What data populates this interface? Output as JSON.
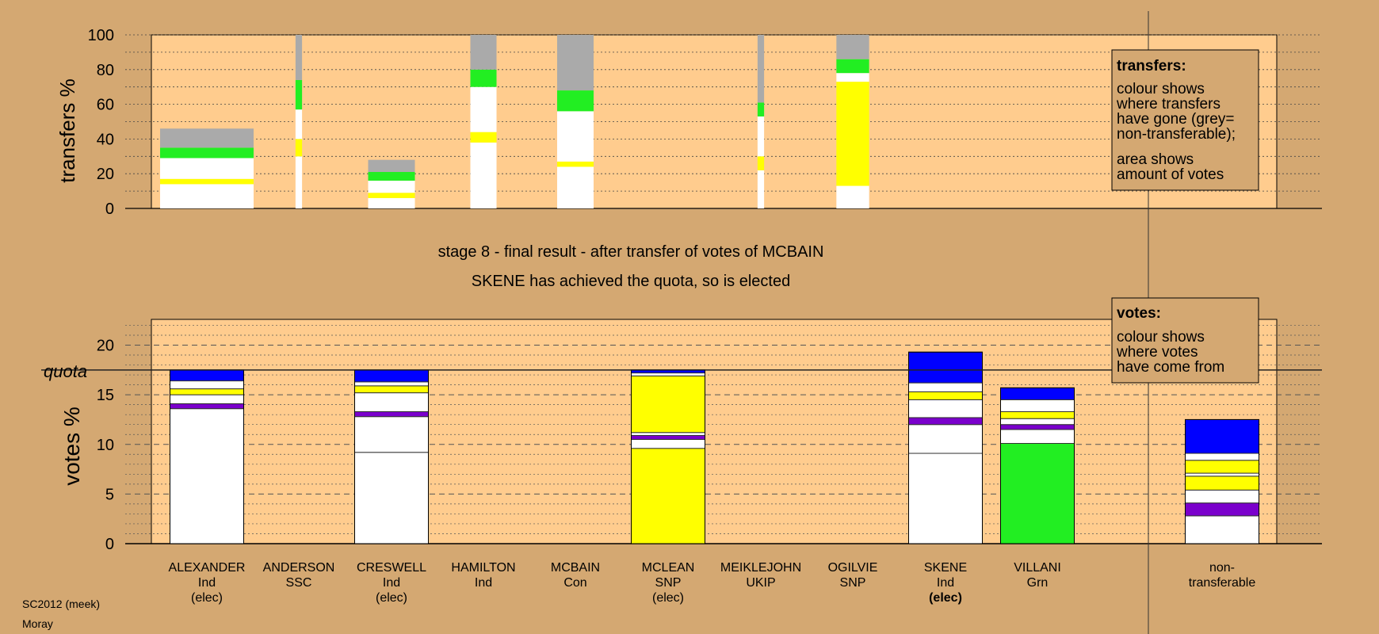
{
  "chart_data": [
    {
      "type": "bar",
      "stacked": true,
      "ylabel": "transfers %",
      "ylim": [
        0,
        100
      ],
      "yticks": [
        0,
        20,
        40,
        60,
        80,
        100
      ],
      "categories": [
        "ALEXANDER",
        "ANDERSON",
        "CRESWELL",
        "HAMILTON",
        "MCBAIN",
        "MCLEAN",
        "MEIKLEJOHN",
        "OGILVIE",
        "SKENE",
        "VILLANI"
      ],
      "relative_widths": [
        1.0,
        0.07,
        0.5,
        0.28,
        0.39,
        0.0,
        0.07,
        0.35,
        0.0,
        0.0
      ],
      "stacks": [
        [
          {
            "color": "#ffffff",
            "value": 14
          },
          {
            "color": "#ffff00",
            "value": 3
          },
          {
            "color": "#ffffff",
            "value": 12
          },
          {
            "color": "#22ee22",
            "value": 6
          },
          {
            "color": "#aaaaaa",
            "value": 11
          }
        ],
        [
          {
            "color": "#ffffff",
            "value": 30
          },
          {
            "color": "#ffff00",
            "value": 10
          },
          {
            "color": "#ffffff",
            "value": 17
          },
          {
            "color": "#22ee22",
            "value": 17
          },
          {
            "color": "#aaaaaa",
            "value": 26
          }
        ],
        [
          {
            "color": "#ffffff",
            "value": 6
          },
          {
            "color": "#ffff00",
            "value": 3
          },
          {
            "color": "#ffffff",
            "value": 7
          },
          {
            "color": "#22ee22",
            "value": 5
          },
          {
            "color": "#aaaaaa",
            "value": 7
          }
        ],
        [
          {
            "color": "#ffffff",
            "value": 38
          },
          {
            "color": "#ffff00",
            "value": 6
          },
          {
            "color": "#ffffff",
            "value": 26
          },
          {
            "color": "#22ee22",
            "value": 10
          },
          {
            "color": "#aaaaaa",
            "value": 20
          }
        ],
        [
          {
            "color": "#ffffff",
            "value": 24
          },
          {
            "color": "#ffff00",
            "value": 3
          },
          {
            "color": "#ffffff",
            "value": 29
          },
          {
            "color": "#22ee22",
            "value": 12
          },
          {
            "color": "#aaaaaa",
            "value": 32
          }
        ],
        [],
        [
          {
            "color": "#ffffff",
            "value": 22
          },
          {
            "color": "#ffff00",
            "value": 8
          },
          {
            "color": "#ffffff",
            "value": 23
          },
          {
            "color": "#22ee22",
            "value": 8
          },
          {
            "color": "#aaaaaa",
            "value": 39
          }
        ],
        [
          {
            "color": "#ffffff",
            "value": 13
          },
          {
            "color": "#ffff00",
            "value": 60
          },
          {
            "color": "#ffffff",
            "value": 5
          },
          {
            "color": "#22ee22",
            "value": 8
          },
          {
            "color": "#aaaaaa",
            "value": 14
          }
        ],
        [],
        []
      ],
      "legend": {
        "title": "transfers:",
        "lines": [
          "colour shows",
          "where transfers",
          "have gone (grey=",
          "non-transferable);"
        ],
        "lines2": [
          "area shows",
          "amount of votes"
        ]
      }
    },
    {
      "type": "bar",
      "stacked": true,
      "ylabel": "votes %",
      "ylim": [
        0,
        22.5
      ],
      "yticks": [
        0,
        5,
        10,
        15,
        20
      ],
      "quota": 17.5,
      "quota_label": "quota",
      "categories": [
        "ALEXANDER",
        "ANDERSON",
        "CRESWELL",
        "HAMILTON",
        "MCBAIN",
        "MCLEAN",
        "MEIKLEJOHN",
        "OGILVIE",
        "SKENE",
        "VILLANI",
        "non-transferable"
      ],
      "stacks": [
        [
          {
            "color": "#ffffff",
            "value": 13.6
          },
          {
            "color": "#7a00cc",
            "value": 0.5
          },
          {
            "color": "#ffffff",
            "value": 0.9
          },
          {
            "color": "#ffff00",
            "value": 0.6
          },
          {
            "color": "#ffffff",
            "value": 0.8
          },
          {
            "color": "#0000ff",
            "value": 1.1
          }
        ],
        [],
        [
          {
            "color": "#ffffff",
            "value": 9.2
          },
          {
            "color": "#ffffff",
            "value": 3.6
          },
          {
            "color": "#7a00cc",
            "value": 0.5
          },
          {
            "color": "#ffffff",
            "value": 1.9
          },
          {
            "color": "#ffff00",
            "value": 0.7
          },
          {
            "color": "#ffffff",
            "value": 0.4
          },
          {
            "color": "#0000ff",
            "value": 1.2
          }
        ],
        [],
        [],
        [
          {
            "color": "#ffff00",
            "value": 9.6
          },
          {
            "color": "#ffffff",
            "value": 0.9
          },
          {
            "color": "#7a00cc",
            "value": 0.4
          },
          {
            "color": "#ffffff",
            "value": 0.3
          },
          {
            "color": "#ffff00",
            "value": 5.7
          },
          {
            "color": "#ffffff",
            "value": 0.3
          },
          {
            "color": "#0000ff",
            "value": 0.3
          }
        ],
        [],
        [],
        [
          {
            "color": "#ffffff",
            "value": 9.1
          },
          {
            "color": "#ffffff",
            "value": 2.9
          },
          {
            "color": "#7a00cc",
            "value": 0.7
          },
          {
            "color": "#ffffff",
            "value": 1.8
          },
          {
            "color": "#ffff00",
            "value": 0.8
          },
          {
            "color": "#ffffff",
            "value": 0.9
          },
          {
            "color": "#0000ff",
            "value": 3.1
          }
        ],
        [
          {
            "color": "#22ee22",
            "value": 10.1
          },
          {
            "color": "#ffffff",
            "value": 1.4
          },
          {
            "color": "#7a00cc",
            "value": 0.5
          },
          {
            "color": "#ffffff",
            "value": 0.6
          },
          {
            "color": "#ffff00",
            "value": 0.7
          },
          {
            "color": "#ffffff",
            "value": 1.2
          },
          {
            "color": "#0000ff",
            "value": 1.2
          }
        ],
        [
          {
            "color": "#ffffff",
            "value": 2.8
          },
          {
            "color": "#7a00cc",
            "value": 1.3
          },
          {
            "color": "#ffffff",
            "value": 1.3
          },
          {
            "color": "#ffff00",
            "value": 1.4
          },
          {
            "color": "#ffffff",
            "value": 0.3
          },
          {
            "color": "#ffff00",
            "value": 1.3
          },
          {
            "color": "#ffffff",
            "value": 0.7
          },
          {
            "color": "#0000ff",
            "value": 3.4
          }
        ]
      ],
      "legend": {
        "title": "votes:",
        "lines": [
          "colour shows",
          "where votes",
          "have come from"
        ]
      }
    }
  ],
  "title_lines": [
    "stage 8 - final result - after transfer of votes of MCBAIN",
    "SKENE has achieved the quota, so is elected"
  ],
  "candidate_labels": [
    [
      "ALEXANDER",
      "Ind",
      "(elec)"
    ],
    [
      "ANDERSON",
      "SSC",
      ""
    ],
    [
      "CRESWELL",
      "Ind",
      "(elec)"
    ],
    [
      "HAMILTON",
      "Ind",
      ""
    ],
    [
      "MCBAIN",
      "Con",
      ""
    ],
    [
      "MCLEAN",
      "SNP",
      "(elec)"
    ],
    [
      "MEIKLEJOHN",
      "UKIP",
      ""
    ],
    [
      "OGILVIE",
      "SNP",
      ""
    ],
    [
      "SKENE",
      "Ind",
      "(elec)"
    ],
    [
      "VILLANI",
      "Grn",
      ""
    ],
    [
      "non-",
      "transferable",
      ""
    ]
  ],
  "footer": [
    "SC2012 (meek)",
    "Moray"
  ],
  "colors": {
    "background": "#d4a872",
    "plot_bg": "#ffcc8e"
  }
}
